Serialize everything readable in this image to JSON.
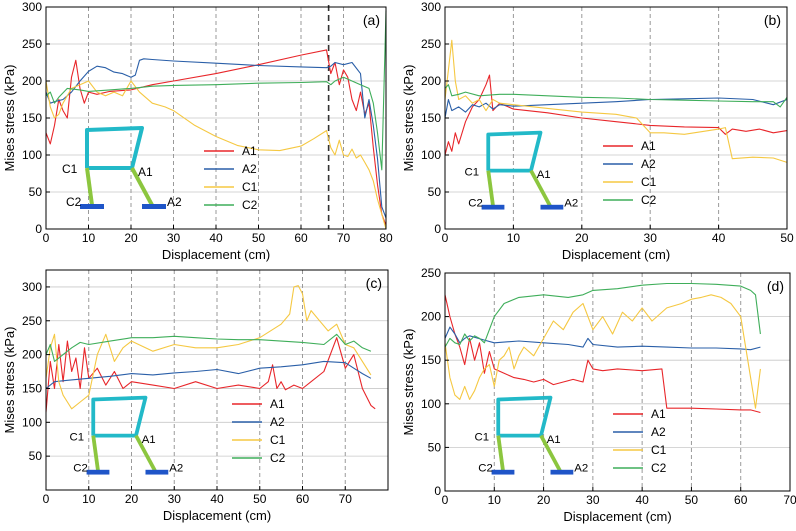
{
  "colors": {
    "A1": "#e8262a",
    "A2": "#2a5fa8",
    "C1": "#f5c842",
    "C2": "#3fae5a",
    "frame_beam": "#22b9c8",
    "frame_column": "#8cc63f",
    "base": "#1f55c8"
  },
  "chart_data": [
    {
      "panel_label": "(a)",
      "type": "line",
      "xlabel": "Displacement (cm)",
      "ylabel": "Mises stress (kPa)",
      "xlim": [
        0,
        80
      ],
      "ylim": [
        0,
        300
      ],
      "xticks": [
        0,
        10,
        20,
        30,
        40,
        50,
        60,
        70,
        80
      ],
      "yticks": [
        0,
        50,
        100,
        150,
        200,
        250,
        300
      ],
      "dashed_x": [
        10,
        20,
        30,
        40,
        50,
        60,
        70
      ],
      "marker_x": 66.5,
      "legend": [
        "A1",
        "A2",
        "C1",
        "C2"
      ],
      "frame_labels": [
        "C1",
        "A1",
        "C2",
        "A2"
      ],
      "series": [
        {
          "name": "A1",
          "x": [
            0,
            1,
            2,
            3,
            4,
            5,
            6,
            7,
            8,
            9,
            10,
            12,
            15,
            20,
            25,
            30,
            40,
            50,
            60,
            66,
            67,
            68,
            69,
            70,
            71,
            72,
            73,
            74,
            75,
            76,
            77,
            78,
            79,
            80
          ],
          "y": [
            130,
            115,
            140,
            175,
            160,
            150,
            205,
            228,
            190,
            170,
            185,
            182,
            186,
            188,
            195,
            200,
            210,
            222,
            235,
            242,
            210,
            225,
            195,
            215,
            205,
            175,
            160,
            185,
            155,
            170,
            110,
            60,
            20,
            5
          ]
        },
        {
          "name": "A2",
          "x": [
            0,
            1,
            2,
            4,
            6,
            8,
            10,
            12,
            14,
            16,
            18,
            20,
            21,
            22,
            23,
            25,
            30,
            40,
            50,
            60,
            66,
            67,
            68,
            70,
            72,
            74,
            75,
            76,
            77,
            78,
            79,
            80
          ],
          "y": [
            185,
            170,
            172,
            175,
            185,
            200,
            213,
            220,
            218,
            212,
            210,
            205,
            208,
            228,
            230,
            229,
            227,
            224,
            221,
            219,
            218,
            220,
            225,
            222,
            225,
            210,
            150,
            175,
            140,
            95,
            30,
            15
          ]
        },
        {
          "name": "C1",
          "x": [
            0,
            1,
            2,
            3,
            4,
            6,
            8,
            10,
            12,
            14,
            16,
            18,
            20,
            22,
            25,
            28,
            30,
            35,
            40,
            45,
            50,
            55,
            60,
            63,
            66,
            67,
            68,
            69,
            70,
            71,
            72,
            73,
            74,
            75,
            76,
            77,
            78,
            79,
            80
          ],
          "y": [
            200,
            165,
            150,
            155,
            170,
            190,
            195,
            200,
            185,
            180,
            185,
            180,
            200,
            185,
            170,
            165,
            160,
            140,
            125,
            113,
            107,
            106,
            112,
            122,
            133,
            110,
            100,
            120,
            100,
            98,
            108,
            96,
            100,
            90,
            80,
            65,
            40,
            20,
            0
          ]
        },
        {
          "name": "C2",
          "x": [
            0,
            1,
            2,
            3,
            5,
            8,
            10,
            15,
            20,
            25,
            30,
            40,
            50,
            60,
            66,
            67,
            68,
            70,
            72,
            74,
            76,
            77,
            78,
            79,
            80
          ],
          "y": [
            180,
            185,
            170,
            178,
            190,
            188,
            186,
            188,
            190,
            193,
            194,
            195,
            197,
            198,
            199,
            195,
            200,
            205,
            200,
            195,
            190,
            170,
            130,
            80,
            295
          ]
        }
      ]
    },
    {
      "panel_label": "(b)",
      "type": "line",
      "xlabel": "Displacement (cm)",
      "ylabel": "Mises stress (kPa)",
      "xlim": [
        0,
        50
      ],
      "ylim": [
        0,
        300
      ],
      "xticks": [
        0,
        10,
        20,
        30,
        40,
        50
      ],
      "yticks": [
        0,
        50,
        100,
        150,
        200,
        250,
        300
      ],
      "dashed_x": [
        10,
        20,
        30,
        40
      ],
      "legend": [
        "A1",
        "A2",
        "C1",
        "C2"
      ],
      "frame_labels": [
        "C1",
        "A1",
        "C2",
        "A2"
      ],
      "series": [
        {
          "name": "A1",
          "x": [
            0,
            0.5,
            1,
            1.5,
            2,
            3,
            4,
            5,
            6,
            6.5,
            7,
            8,
            10,
            15,
            20,
            25,
            30,
            35,
            40,
            41,
            42,
            44,
            46,
            48,
            50
          ],
          "y": [
            100,
            118,
            105,
            130,
            115,
            145,
            165,
            175,
            195,
            208,
            160,
            170,
            162,
            157,
            150,
            145,
            140,
            138,
            137,
            128,
            135,
            132,
            135,
            130,
            133
          ]
        },
        {
          "name": "A2",
          "x": [
            0,
            0.5,
            1,
            2,
            3,
            4,
            5,
            6,
            7,
            8,
            10,
            15,
            20,
            25,
            30,
            35,
            40,
            45,
            48,
            50
          ],
          "y": [
            150,
            175,
            160,
            165,
            158,
            168,
            165,
            170,
            162,
            168,
            166,
            168,
            170,
            172,
            175,
            176,
            177,
            175,
            168,
            175
          ]
        },
        {
          "name": "C1",
          "x": [
            0,
            0.5,
            1,
            1.5,
            2,
            3,
            4,
            5,
            6,
            7,
            8,
            10,
            15,
            20,
            25,
            28,
            30,
            32,
            35,
            40,
            41,
            42,
            45,
            48,
            50
          ],
          "y": [
            175,
            215,
            255,
            200,
            175,
            180,
            170,
            175,
            160,
            175,
            170,
            168,
            163,
            158,
            155,
            150,
            130,
            130,
            128,
            135,
            137,
            95,
            97,
            96,
            90
          ]
        },
        {
          "name": "C2",
          "x": [
            0,
            0.5,
            1,
            2,
            3,
            5,
            8,
            10,
            15,
            20,
            25,
            30,
            35,
            40,
            45,
            48,
            49,
            50
          ],
          "y": [
            190,
            195,
            180,
            182,
            185,
            180,
            182,
            182,
            180,
            178,
            177,
            175,
            174,
            173,
            172,
            172,
            165,
            178
          ]
        }
      ]
    },
    {
      "panel_label": "(c)",
      "type": "line",
      "xlabel": "Displacement (cm)",
      "ylabel": "Mises stress (kPa)",
      "xlim": [
        0,
        80
      ],
      "ylim": [
        0,
        325
      ],
      "xticks": [
        0,
        10,
        20,
        30,
        40,
        50,
        60,
        70
      ],
      "yticks": [
        50,
        100,
        150,
        200,
        250,
        300
      ],
      "dashed_x": [
        10,
        20,
        30,
        40,
        50,
        60,
        70
      ],
      "legend": [
        "A1",
        "A2",
        "C1",
        "C2"
      ],
      "frame_labels": [
        "C1",
        "A1",
        "C2",
        "A2"
      ],
      "series": [
        {
          "name": "A1",
          "x": [
            0,
            1,
            2,
            3,
            4,
            5,
            6,
            7,
            8,
            9,
            10,
            12,
            14,
            16,
            18,
            20,
            25,
            30,
            35,
            40,
            45,
            50,
            52,
            53,
            54,
            55,
            56,
            58,
            60,
            65,
            68,
            70,
            72,
            74,
            76,
            77
          ],
          "y": [
            115,
            190,
            150,
            215,
            160,
            220,
            175,
            195,
            150,
            210,
            165,
            180,
            155,
            175,
            150,
            160,
            155,
            150,
            160,
            150,
            155,
            150,
            160,
            185,
            150,
            160,
            148,
            155,
            150,
            175,
            225,
            180,
            200,
            150,
            125,
            120
          ]
        },
        {
          "name": "A2",
          "x": [
            0,
            2,
            5,
            10,
            15,
            20,
            25,
            30,
            35,
            40,
            45,
            50,
            55,
            60,
            65,
            70,
            72,
            74,
            76
          ],
          "y": [
            150,
            160,
            162,
            165,
            168,
            172,
            170,
            173,
            175,
            178,
            172,
            180,
            182,
            185,
            190,
            188,
            180,
            172,
            165
          ]
        },
        {
          "name": "C1",
          "x": [
            0,
            1,
            2,
            3,
            4,
            5,
            6,
            8,
            10,
            12,
            14,
            16,
            18,
            20,
            25,
            30,
            35,
            40,
            45,
            50,
            55,
            57,
            58,
            59,
            60,
            61,
            62,
            64,
            66,
            68,
            70,
            72,
            74,
            76
          ],
          "y": [
            165,
            210,
            230,
            160,
            140,
            130,
            120,
            130,
            140,
            200,
            230,
            190,
            210,
            220,
            205,
            215,
            210,
            210,
            215,
            225,
            245,
            260,
            300,
            302,
            290,
            250,
            265,
            250,
            235,
            245,
            215,
            210,
            190,
            170
          ]
        },
        {
          "name": "C2",
          "x": [
            0,
            1,
            2,
            4,
            6,
            8,
            10,
            15,
            20,
            25,
            30,
            35,
            40,
            45,
            50,
            55,
            60,
            65,
            68,
            70,
            72,
            74,
            76
          ],
          "y": [
            200,
            215,
            190,
            200,
            210,
            218,
            215,
            220,
            225,
            225,
            227,
            225,
            223,
            222,
            222,
            220,
            218,
            215,
            230,
            215,
            220,
            210,
            205
          ]
        }
      ]
    },
    {
      "panel_label": "(d)",
      "type": "line",
      "xlabel": "Displacement (cm)",
      "ylabel": "Mises stress (kPa)",
      "xlim": [
        0,
        70
      ],
      "ylim": [
        0,
        250
      ],
      "xticks": [
        0,
        10,
        20,
        30,
        40,
        50,
        60,
        70
      ],
      "yticks": [
        0,
        50,
        100,
        150,
        200,
        250
      ],
      "dashed_x": [
        10,
        20,
        30,
        40,
        50,
        60
      ],
      "legend": [
        "A1",
        "A2",
        "C1",
        "C2"
      ],
      "frame_labels": [
        "C1",
        "A1",
        "C2",
        "A2"
      ],
      "series": [
        {
          "name": "A1",
          "x": [
            0,
            1,
            2,
            3,
            4,
            5,
            6,
            7,
            8,
            9,
            10,
            12,
            14,
            16,
            18,
            20,
            22,
            24,
            26,
            28,
            29,
            30,
            32,
            35,
            40,
            44,
            45,
            50,
            55,
            60,
            62,
            64
          ],
          "y": [
            225,
            200,
            180,
            165,
            145,
            175,
            150,
            170,
            135,
            160,
            140,
            135,
            130,
            128,
            125,
            128,
            122,
            125,
            128,
            125,
            150,
            140,
            138,
            140,
            138,
            140,
            95,
            95,
            94,
            93,
            93,
            90
          ]
        },
        {
          "name": "A2",
          "x": [
            0,
            1,
            2,
            3,
            4,
            5,
            8,
            10,
            15,
            20,
            25,
            28,
            29,
            30,
            35,
            40,
            45,
            50,
            55,
            60,
            62,
            64
          ],
          "y": [
            175,
            188,
            180,
            170,
            175,
            178,
            173,
            170,
            172,
            170,
            168,
            165,
            175,
            168,
            165,
            166,
            165,
            164,
            164,
            163,
            162,
            165
          ]
        },
        {
          "name": "C1",
          "x": [
            0,
            1,
            2,
            3,
            4,
            5,
            6,
            7,
            8,
            9,
            10,
            11,
            12,
            13,
            14,
            15,
            16,
            18,
            20,
            22,
            24,
            26,
            28,
            30,
            32,
            34,
            36,
            38,
            40,
            42,
            45,
            48,
            50,
            52,
            54,
            56,
            58,
            60,
            62,
            63,
            64
          ],
          "y": [
            170,
            130,
            110,
            105,
            120,
            105,
            115,
            130,
            140,
            145,
            120,
            150,
            155,
            165,
            140,
            155,
            165,
            155,
            175,
            195,
            185,
            205,
            215,
            185,
            200,
            180,
            205,
            195,
            210,
            195,
            210,
            215,
            220,
            222,
            225,
            222,
            215,
            200,
            130,
            95,
            140
          ]
        },
        {
          "name": "C2",
          "x": [
            0,
            1,
            2,
            3,
            4,
            5,
            6,
            7,
            8,
            10,
            12,
            15,
            20,
            25,
            28,
            30,
            35,
            40,
            45,
            50,
            55,
            60,
            62,
            63,
            64
          ],
          "y": [
            165,
            175,
            170,
            168,
            180,
            172,
            178,
            175,
            170,
            200,
            215,
            222,
            225,
            222,
            225,
            230,
            232,
            236,
            238,
            238,
            237,
            235,
            230,
            225,
            180
          ]
        }
      ]
    }
  ]
}
